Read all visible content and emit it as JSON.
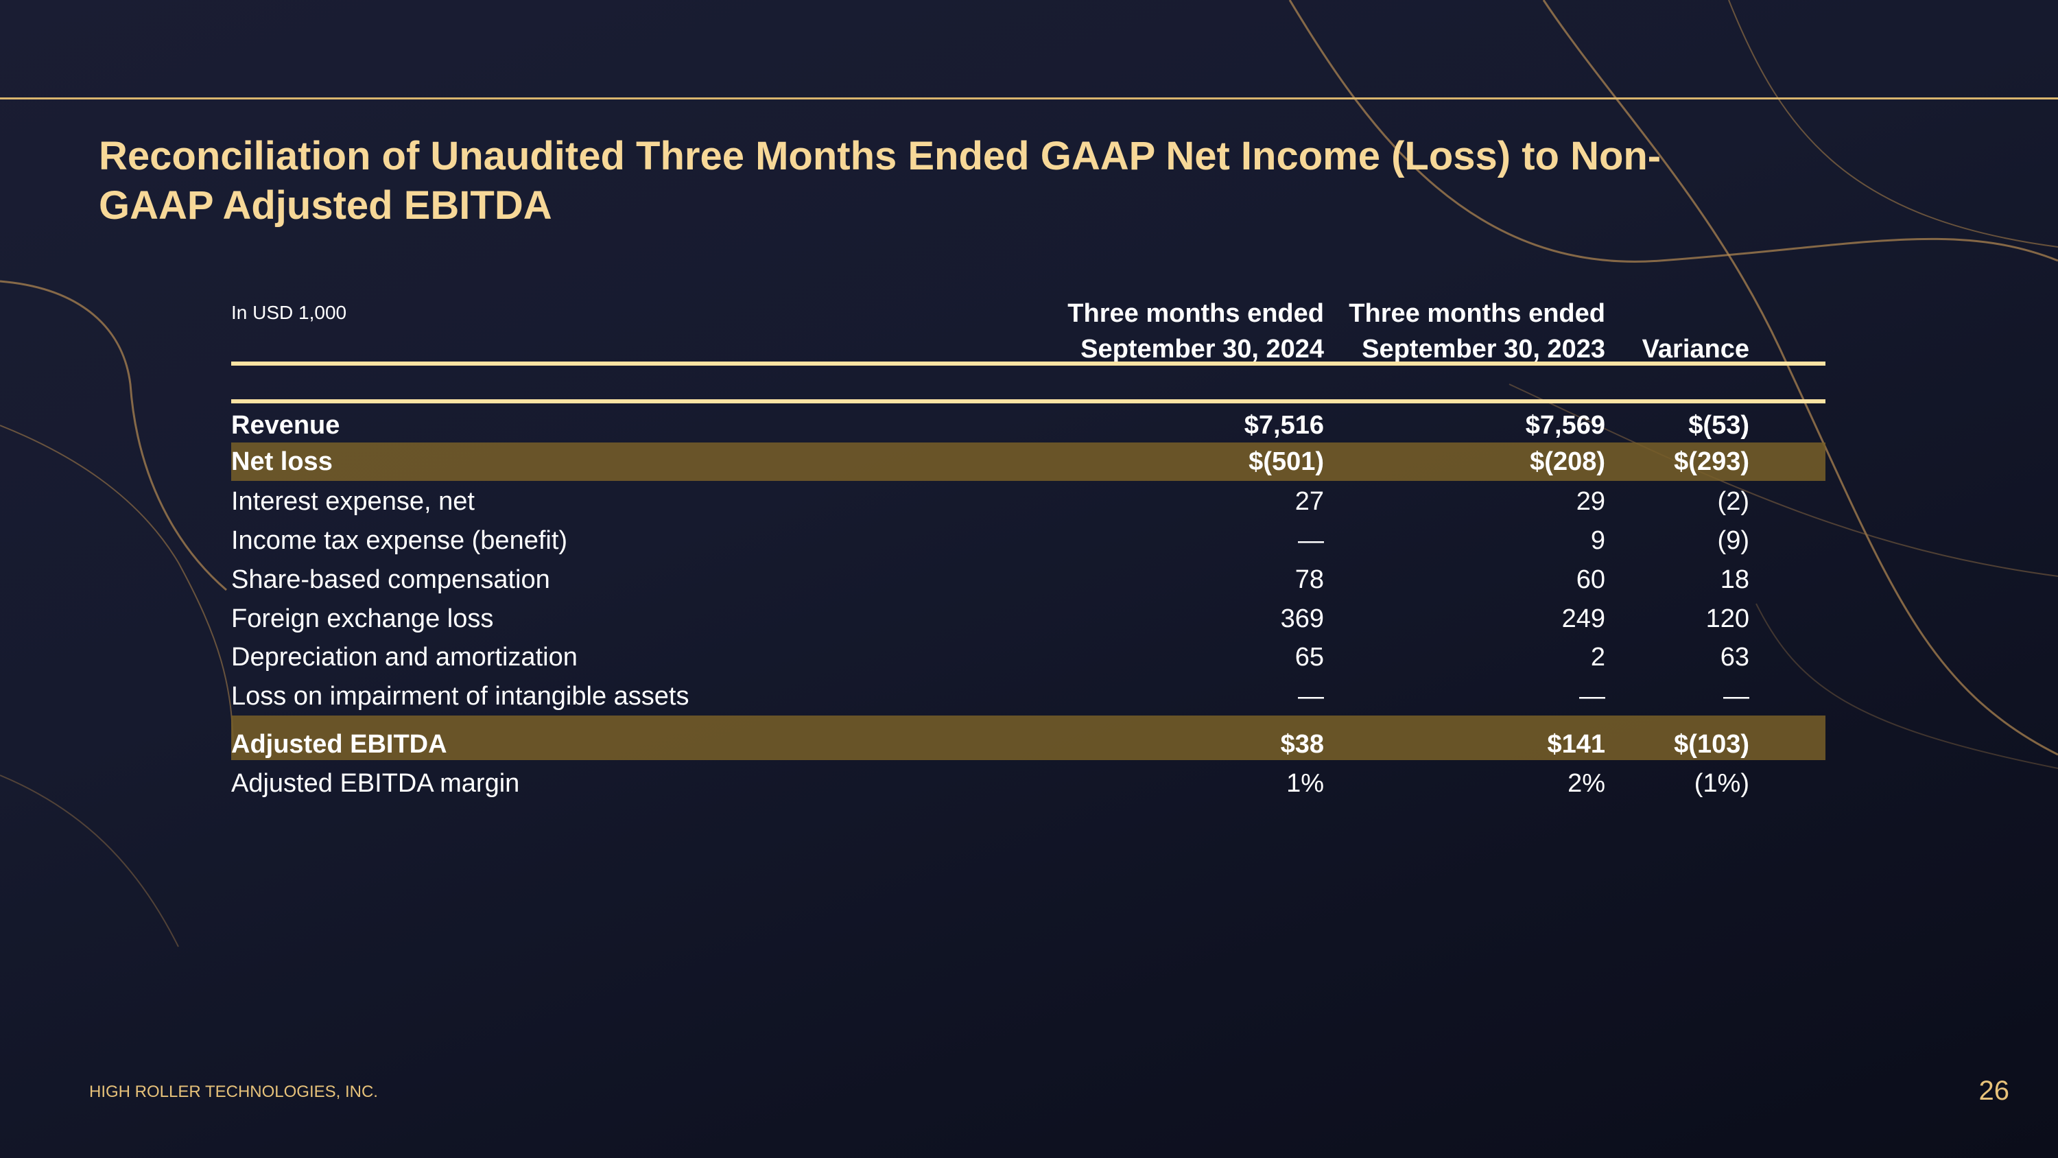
{
  "title": "Reconciliation of Unaudited Three Months Ended GAAP Net Income (Loss) to Non-GAAP Adjusted EBITDA",
  "unit_note": "In USD 1,000",
  "columns": [
    {
      "line1": "Three months ended",
      "line2": "September 30, 2024"
    },
    {
      "line1": "Three months ended",
      "line2": "September 30, 2023"
    },
    {
      "line1": "",
      "line2": "Variance"
    }
  ],
  "rows": [
    {
      "label": "Revenue",
      "v1": "$7,516",
      "v2": "$7,569",
      "v3": "$(53)"
    },
    {
      "label": "Net loss",
      "v1": "$(501)",
      "v2": "$(208)",
      "v3": "$(293)"
    },
    {
      "label": "Interest expense, net",
      "v1": "27",
      "v2": "29",
      "v3": "(2)"
    },
    {
      "label": "Income tax expense (benefit)",
      "v1": "—",
      "v2": "9",
      "v3": "(9)"
    },
    {
      "label": "Share-based compensation",
      "v1": "78",
      "v2": "60",
      "v3": "18"
    },
    {
      "label": "Foreign exchange loss",
      "v1": "369",
      "v2": "249",
      "v3": "120"
    },
    {
      "label": "Depreciation and amortization",
      "v1": "65",
      "v2": "2",
      "v3": "63"
    },
    {
      "label": "Loss on impairment of intangible assets",
      "v1": "—",
      "v2": "—",
      "v3": "—"
    },
    {
      "label": "Adjusted EBITDA",
      "v1": "$38",
      "v2": "$141",
      "v3": "$(103)"
    },
    {
      "label": "Adjusted EBITDA margin",
      "v1": "1%",
      "v2": "2%",
      "v3": "(1%)"
    }
  ],
  "footer": {
    "company": "HIGH ROLLER TECHNOLOGIES, INC.",
    "page_number": "26"
  },
  "colors": {
    "accent_gold": "#d9b56e",
    "title": "#f7d898",
    "highlight_band": "#6b5428",
    "background": "#14172a"
  }
}
